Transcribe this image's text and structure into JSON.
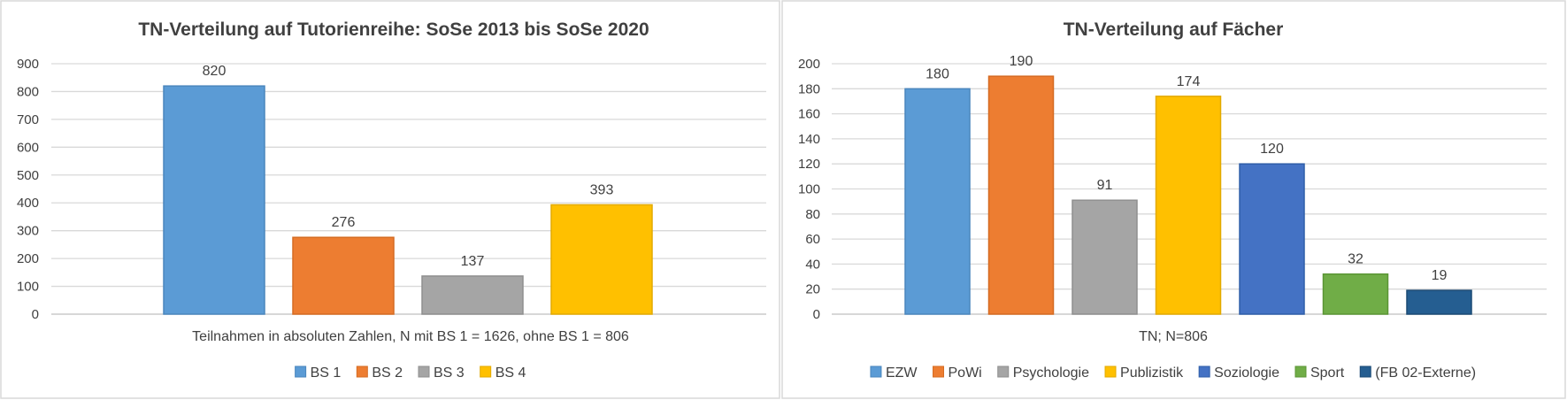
{
  "charts": {
    "left": {
      "bg_color": "#ffffff",
      "border_color": "#d9d9d9"
    },
    "right": {
      "bg_color": "#ffffff",
      "border_color": "#d9d9d9"
    }
  },
  "chart_data": [
    {
      "type": "bar",
      "title": "TN-Verteilung auf Tutorienreihe: SoSe 2013 bis SoSe 2020",
      "xlabel": "Teilnahmen in absoluten Zahlen, N mit BS 1 = 1626, ohne BS 1 = 806",
      "ylabel": "",
      "ylim": [
        0,
        900
      ],
      "yticks": [
        0,
        100,
        200,
        300,
        400,
        500,
        600,
        700,
        800,
        900
      ],
      "grid": true,
      "legend_position": "bottom",
      "series": [
        {
          "name": "BS 1",
          "value": 820,
          "color": "#5b9bd5",
          "stroke": "#4a86bd"
        },
        {
          "name": "BS 2",
          "value": 276,
          "color": "#ed7d31",
          "stroke": "#d56b22"
        },
        {
          "name": "BS 3",
          "value": 137,
          "color": "#a5a5a5",
          "stroke": "#8f8f8f"
        },
        {
          "name": "BS 4",
          "value": 393,
          "color": "#ffc000",
          "stroke": "#e3aa00"
        }
      ]
    },
    {
      "type": "bar",
      "title": "TN-Verteilung auf Fächer",
      "xlabel": "TN; N=806",
      "ylabel": "",
      "ylim": [
        0,
        200
      ],
      "yticks": [
        0,
        20,
        40,
        60,
        80,
        100,
        120,
        140,
        160,
        180,
        200
      ],
      "grid": true,
      "legend_position": "bottom",
      "series": [
        {
          "name": "EZW",
          "value": 180,
          "color": "#5b9bd5",
          "stroke": "#4a86bd"
        },
        {
          "name": "PoWi",
          "value": 190,
          "color": "#ed7d31",
          "stroke": "#d56b22"
        },
        {
          "name": "Psychologie",
          "value": 91,
          "color": "#a5a5a5",
          "stroke": "#8f8f8f"
        },
        {
          "name": "Publizistik",
          "value": 174,
          "color": "#ffc000",
          "stroke": "#e3aa00"
        },
        {
          "name": "Soziologie",
          "value": 120,
          "color": "#4472c4",
          "stroke": "#2f5ea8"
        },
        {
          "name": "Sport",
          "value": 32,
          "color": "#70ad47",
          "stroke": "#5b9535"
        },
        {
          "name": "(FB 02-Externe)",
          "value": 19,
          "color": "#255e91",
          "stroke": "#1b4a74"
        }
      ]
    }
  ]
}
